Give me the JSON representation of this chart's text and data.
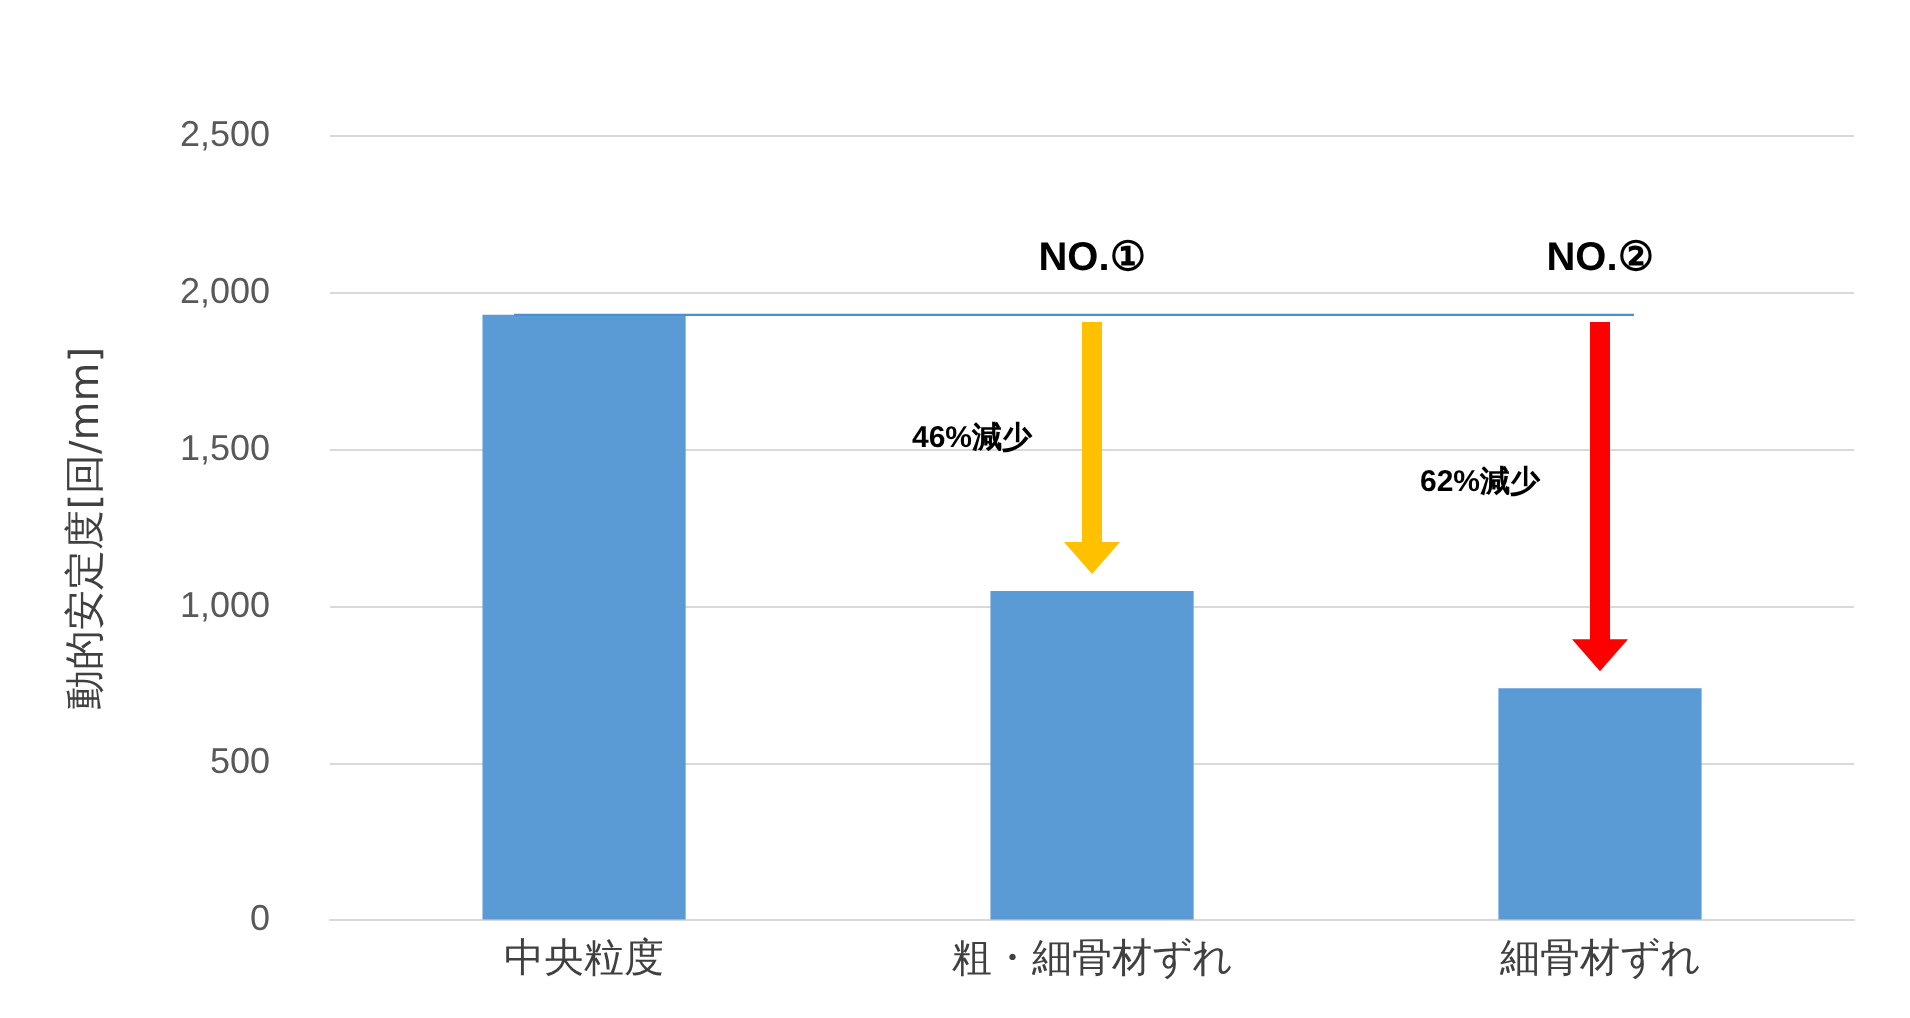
{
  "chart_data": {
    "type": "bar",
    "ylabel": "動的安定度[回/mm]",
    "categories": [
      "中央粒度",
      "粗・細骨材ずれ",
      "細骨材ずれ"
    ],
    "values": [
      1930,
      1050,
      740
    ],
    "color": "#5b9bd5",
    "ylim": [
      0,
      2500
    ],
    "yticks": [
      {
        "value": 0,
        "label": "0"
      },
      {
        "value": 500,
        "label": "500"
      },
      {
        "value": 1000,
        "label": "1,000"
      },
      {
        "value": 1500,
        "label": "1,500"
      },
      {
        "value": 2000,
        "label": "2,000"
      },
      {
        "value": 2500,
        "label": "2,500"
      }
    ],
    "grid": "y",
    "ref_lines": [
      {
        "axis": "y",
        "value": 1930,
        "label": null,
        "color": "#4a8fd0"
      }
    ],
    "annotations": [
      "NO.①",
      "NO.②",
      "46%減少",
      "62%減少"
    ]
  }
}
